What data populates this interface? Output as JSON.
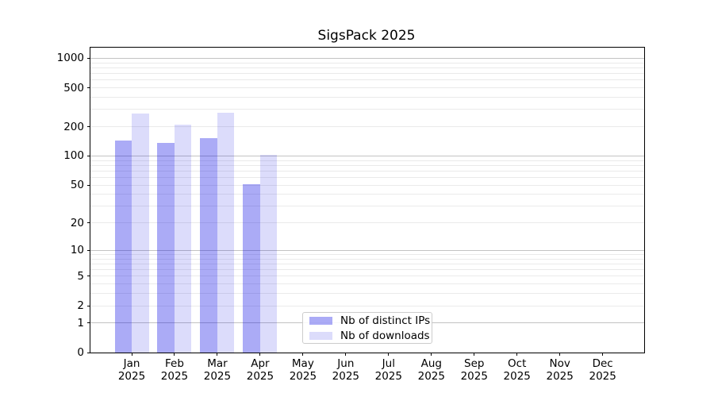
{
  "chart_data": {
    "type": "bar",
    "title": "SigsPack 2025",
    "categories": [
      "Jan 2025",
      "Feb 2025",
      "Mar 2025",
      "Apr 2025",
      "May 2025",
      "Jun 2025",
      "Jul 2025",
      "Aug 2025",
      "Sep 2025",
      "Oct 2025",
      "Nov 2025",
      "Dec 2025"
    ],
    "series": [
      {
        "name": "Nb of distinct IPs",
        "color": "rgba(10,10,230,0.34)",
        "values": [
          145,
          136,
          152,
          51,
          null,
          null,
          null,
          null,
          null,
          null,
          null,
          null
        ]
      },
      {
        "name": "Nb of downloads",
        "color": "rgba(10,10,230,0.14)",
        "values": [
          275,
          208,
          276,
          102,
          null,
          null,
          null,
          null,
          null,
          null,
          null,
          null
        ]
      }
    ],
    "xlabel": "",
    "ylabel": "",
    "y_ticks": [
      0,
      1,
      2,
      5,
      10,
      20,
      50,
      100,
      200,
      500,
      1000
    ],
    "y_scale": "log1p",
    "ylim": [
      0,
      1285
    ],
    "grid": {
      "major_color": "#c3c3c3",
      "minor_color": "#eaeaea"
    },
    "legend": {
      "position": "lower-center",
      "entries": [
        "Nb of distinct IPs",
        "Nb of downloads"
      ]
    }
  }
}
